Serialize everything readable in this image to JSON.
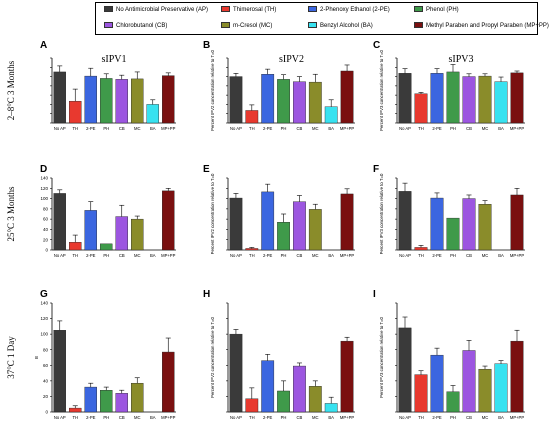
{
  "legend": [
    {
      "label": "No Antimicrobial Preservative (AP)",
      "color": "#3a3a3a"
    },
    {
      "label": "Thimerosal (TH)",
      "color": "#e8392f"
    },
    {
      "label": "2-Phenoxy Ethanol (2-PE)",
      "color": "#3b66e0"
    },
    {
      "label": "Phenol (PH)",
      "color": "#3f9a4a"
    },
    {
      "label": "Chlorobutanol (CB)",
      "color": "#9c56e0"
    },
    {
      "label": "m-Cresol (MC)",
      "color": "#8a8c2a"
    },
    {
      "label": "Benzyl Alcohol (BA)",
      "color": "#38e2f0"
    },
    {
      "label": "Methyl Paraben and Propyl Paraben (MP+PP)",
      "color": "#7a1010"
    }
  ],
  "row_labels": [
    "2–8°C 3 Months",
    "25°C 3 Months",
    "37°C 1 Day"
  ],
  "col_titles": [
    "sIPV1",
    "sIPV2",
    "sIPV3"
  ],
  "chart_data": [
    {
      "panel": "A",
      "type": "bar",
      "categories": [
        "No AP",
        "TH",
        "2-PE",
        "PH",
        "CB",
        "MC",
        "BA",
        "MP+PP"
      ],
      "values": [
        110,
        47,
        101,
        96,
        94,
        95,
        40,
        102
      ],
      "errors": [
        13,
        26,
        17,
        10,
        9,
        15,
        10,
        6
      ],
      "ylim": [
        0,
        140
      ],
      "ylabel": ""
    },
    {
      "panel": "B",
      "type": "bar",
      "categories": [
        "No AP",
        "TH",
        "2-PE",
        "PH",
        "CB",
        "MC",
        "BA",
        "MP+PP"
      ],
      "values": [
        100,
        27,
        105,
        94,
        89,
        88,
        35,
        112
      ],
      "errors": [
        7,
        12,
        11,
        10,
        11,
        17,
        15,
        13
      ],
      "ylim": [
        0,
        140
      ],
      "ylabel": "Percent IPV2 concentration relative to T=0"
    },
    {
      "panel": "C",
      "type": "bar",
      "categories": [
        "No AP",
        "TH",
        "2-PE",
        "PH",
        "CB",
        "MC",
        "BA",
        "MP+PP"
      ],
      "values": [
        107,
        63,
        107,
        110,
        100,
        101,
        89,
        108
      ],
      "errors": [
        10,
        3,
        10,
        16,
        6,
        5,
        10,
        4
      ],
      "ylim": [
        0,
        140
      ],
      "ylabel": "Percent IPV3 concentration relative to T=0"
    },
    {
      "panel": "D",
      "type": "bar",
      "categories": [
        "No AP",
        "TH",
        "2-PE",
        "PH",
        "CB",
        "MC",
        "BA",
        "MP+PP"
      ],
      "values": [
        110,
        15,
        77,
        12,
        65,
        60,
        0,
        115
      ],
      "errors": [
        7,
        14,
        17,
        0,
        22,
        6,
        0,
        5
      ],
      "ylim": [
        0,
        140
      ],
      "ylabel": ""
    },
    {
      "panel": "E",
      "type": "bar",
      "categories": [
        "No AP",
        "TH",
        "2-PE",
        "PH",
        "CB",
        "MC",
        "BA",
        "MP+PP"
      ],
      "values": [
        101,
        3,
        113,
        54,
        94,
        79,
        0,
        109
      ],
      "errors": [
        9,
        2,
        15,
        16,
        12,
        10,
        0,
        10
      ],
      "ylim": [
        0,
        140
      ],
      "ylabel": "Percent IPV2 concentration relative to T=0"
    },
    {
      "panel": "F",
      "type": "bar",
      "categories": [
        "No AP",
        "TH",
        "2-PE",
        "PH",
        "CB",
        "MC",
        "BA",
        "MP+PP"
      ],
      "values": [
        114,
        5,
        101,
        62,
        100,
        89,
        0,
        107
      ],
      "errors": [
        16,
        4,
        10,
        0,
        7,
        7,
        0,
        13
      ],
      "ylim": [
        0,
        140
      ],
      "ylabel": "Percent IPV3 concentration relative to T=0"
    },
    {
      "panel": "G",
      "type": "bar",
      "categories": [
        "No AP",
        "TH",
        "2-PE",
        "PH",
        "CB",
        "MC",
        "BA",
        "MP+PP"
      ],
      "values": [
        105,
        5,
        32,
        28,
        24,
        37,
        0,
        77
      ],
      "errors": [
        12,
        3,
        5,
        4,
        4,
        7,
        0,
        18
      ],
      "ylim": [
        0,
        140
      ],
      "ylabel": "B"
    },
    {
      "panel": "H",
      "type": "bar",
      "categories": [
        "No AP",
        "TH",
        "2-PE",
        "PH",
        "CB",
        "MC",
        "BA",
        "MP+PP"
      ],
      "values": [
        100,
        17,
        66,
        27,
        59,
        33,
        11,
        91
      ],
      "errors": [
        6,
        14,
        8,
        13,
        4,
        7,
        8,
        5
      ],
      "ylim": [
        0,
        140
      ],
      "ylabel": "Percent IPV2 concentration relative to T=0"
    },
    {
      "panel": "I",
      "type": "bar",
      "categories": [
        "No AP",
        "TH",
        "2-PE",
        "PH",
        "CB",
        "MC",
        "BA",
        "MP+PP"
      ],
      "values": [
        108,
        48,
        73,
        26,
        79,
        55,
        62,
        91
      ],
      "errors": [
        14,
        5,
        9,
        8,
        13,
        4,
        4,
        14
      ],
      "ylim": [
        0,
        140
      ],
      "ylabel": "Percent IPV3 concentration relative to T=0"
    }
  ]
}
